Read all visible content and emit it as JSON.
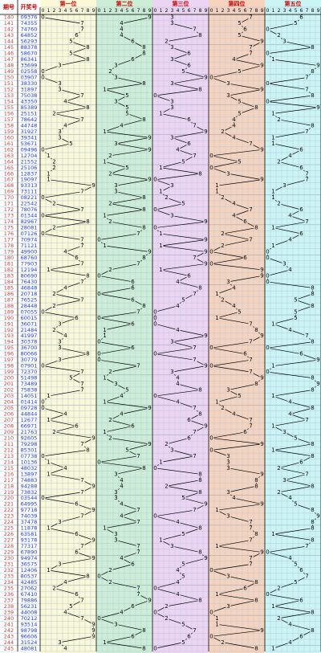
{
  "header": {
    "period": "期号",
    "number": "开奖号",
    "positions": [
      "第一位",
      "第二位",
      "第三位",
      "第四位",
      "第五位"
    ],
    "digits": [
      "0",
      "1",
      "2",
      "3",
      "4",
      "5",
      "6",
      "7",
      "8",
      "9"
    ]
  },
  "rows": [
    [
      "140",
      "09376"
    ],
    [
      "141",
      "74355"
    ],
    [
      "142",
      "74760"
    ],
    [
      "143",
      "64852"
    ],
    [
      "144",
      "56293"
    ],
    [
      "145",
      "88378"
    ],
    [
      "146",
      "58670"
    ],
    [
      "147",
      "86341"
    ],
    [
      "148",
      "33699"
    ],
    [
      "149",
      "02558"
    ],
    [
      "150",
      "03907"
    ],
    [
      "151",
      "38330"
    ],
    [
      "152",
      "31897"
    ],
    [
      "153",
      "75038"
    ],
    [
      "154",
      "43350"
    ],
    [
      "155",
      "85389"
    ],
    [
      "156",
      "25151"
    ],
    [
      "157",
      "78642"
    ],
    [
      "158",
      "44748"
    ],
    [
      "159",
      "31927"
    ],
    [
      "160",
      "39341"
    ],
    [
      "161",
      "53671"
    ],
    [
      "162",
      "09496"
    ],
    [
      "163",
      "12704"
    ],
    [
      "164",
      "21552"
    ],
    [
      "165",
      "25106"
    ],
    [
      "166",
      "12837"
    ],
    [
      "167",
      "19097"
    ],
    [
      "168",
      "93313"
    ],
    [
      "169",
      "73111"
    ],
    [
      "170",
      "08221"
    ],
    [
      "171",
      "22542"
    ],
    [
      "172",
      "78076"
    ],
    [
      "173",
      "01344"
    ],
    [
      "174",
      "82967"
    ],
    [
      "175",
      "28081"
    ],
    [
      "176",
      "07126"
    ],
    [
      "177",
      "70974"
    ],
    [
      "178",
      "71121"
    ],
    [
      "179",
      "49900"
    ],
    [
      "180",
      "68760"
    ],
    [
      "181",
      "77903"
    ],
    [
      "182",
      "12194"
    ],
    [
      "183",
      "80690"
    ],
    [
      "184",
      "76430"
    ],
    [
      "185",
      "46848"
    ],
    [
      "186",
      "20718"
    ],
    [
      "187",
      "76525"
    ],
    [
      "188",
      "28448"
    ],
    [
      "189",
      "07055"
    ],
    [
      "190",
      "60015"
    ],
    [
      "191",
      "36071"
    ],
    [
      "192",
      "21484"
    ],
    [
      "193",
      "41997"
    ],
    [
      "194",
      "30378"
    ],
    [
      "195",
      "36700"
    ],
    [
      "196",
      "80066"
    ],
    [
      "197",
      "30779"
    ],
    [
      "198",
      "07901"
    ],
    [
      "199",
      "72370"
    ],
    [
      "200",
      "51498"
    ],
    [
      "201",
      "73489"
    ],
    [
      "202",
      "75838"
    ],
    [
      "203",
      "14051"
    ],
    [
      "204",
      "01414"
    ],
    [
      "205",
      "09728"
    ],
    [
      "206",
      "44844"
    ],
    [
      "207",
      "12677"
    ],
    [
      "208",
      "66971"
    ],
    [
      "209",
      "21763"
    ],
    [
      "210",
      "92605"
    ],
    [
      "211",
      "79298"
    ],
    [
      "212",
      "85301"
    ],
    [
      "213",
      "07738"
    ],
    [
      "214",
      "10136"
    ],
    [
      "215",
      "48032"
    ],
    [
      "216",
      "13897"
    ],
    [
      "217",
      "74883"
    ],
    [
      "218",
      "94288"
    ],
    [
      "219",
      "73832"
    ],
    [
      "220",
      "03544"
    ],
    [
      "221",
      "64995"
    ],
    [
      "222",
      "97718"
    ],
    [
      "223",
      "74039"
    ],
    [
      "224",
      "37478"
    ],
    [
      "225",
      "11878"
    ],
    [
      "226",
      "63581"
    ],
    [
      "227",
      "93178"
    ],
    [
      "228",
      "77317"
    ],
    [
      "229",
      "67890"
    ],
    [
      "230",
      "94974"
    ],
    [
      "231",
      "36575"
    ],
    [
      "232",
      "12406"
    ],
    [
      "233",
      "80537"
    ],
    [
      "234",
      "42485"
    ],
    [
      "235",
      "27062"
    ],
    [
      "236",
      "67410"
    ],
    [
      "237",
      "79886"
    ],
    [
      "238",
      "56231"
    ],
    [
      "239",
      "44008"
    ],
    [
      "240",
      "70212"
    ],
    [
      "241",
      "93514"
    ],
    [
      "242",
      "98798"
    ],
    [
      "243",
      "96606"
    ],
    [
      "244",
      "31524"
    ],
    [
      "245",
      "48081"
    ]
  ]
}
